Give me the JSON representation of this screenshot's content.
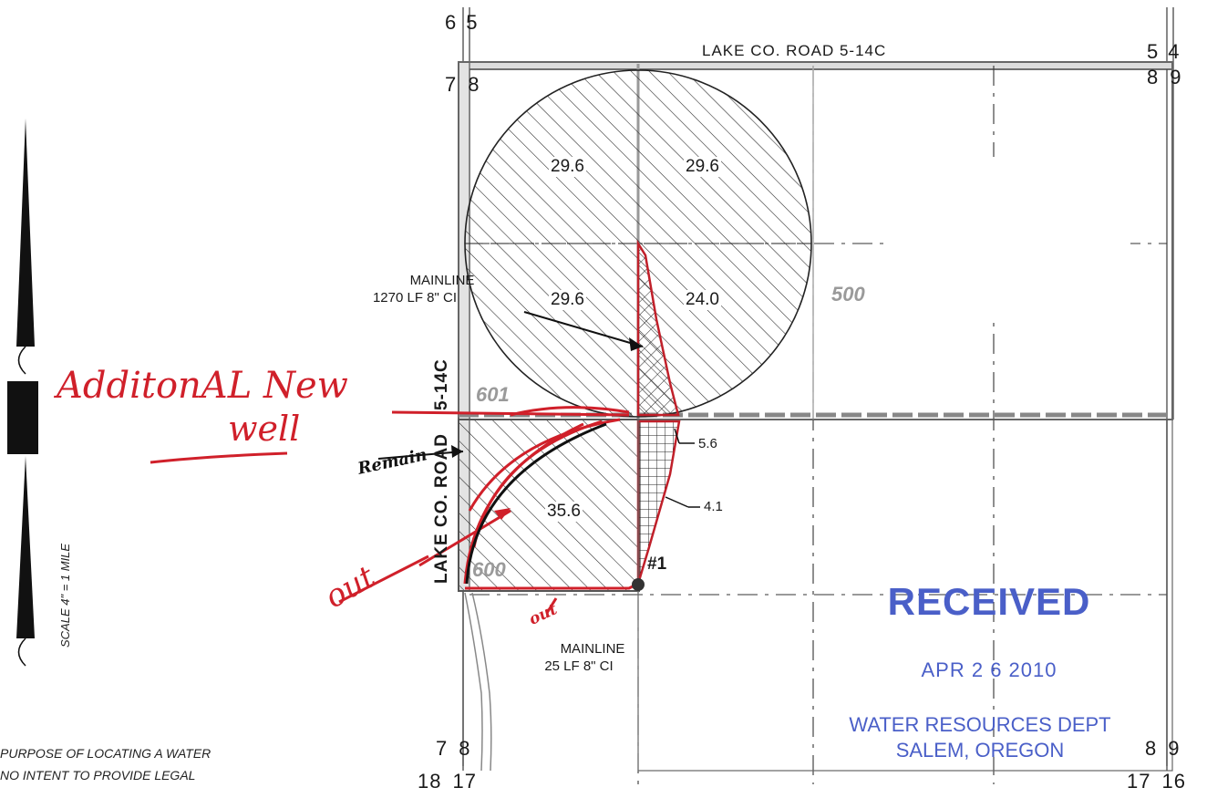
{
  "road_names": {
    "top": "LAKE CO. ROAD 5-14C",
    "side_upper": "5-14C",
    "side_lower": "LAKE CO. ROAD"
  },
  "section_corners": {
    "top_left": [
      "6",
      "5"
    ],
    "top_right": [
      "5",
      "4"
    ],
    "upper_left": [
      "7",
      "8"
    ],
    "upper_right": [
      "8",
      "9"
    ],
    "lower_left": [
      "7",
      "8"
    ],
    "lower_right": [
      "8",
      "9"
    ],
    "bottom_left": [
      "18",
      "17"
    ],
    "bottom_right": [
      "17",
      "16"
    ]
  },
  "acreage_labels": [
    "29.6",
    "29.6",
    "29.6",
    "24.0",
    "35.6"
  ],
  "callouts": {
    "mainline_upper": [
      "MAINLINE",
      "1270 LF 8\" CI"
    ],
    "mainline_lower": [
      "MAINLINE",
      "25 LF 8\" CI"
    ],
    "area_a": "5.6",
    "area_b": "4.1",
    "well": "#1"
  },
  "parcel_numbers": [
    "500",
    "601",
    "600"
  ],
  "scale_note": "SCALE 4\" = 1 MILE",
  "disclaimer_lines": [
    "PURPOSE OF LOCATING A WATER",
    "NO INTENT TO PROVIDE LEGAL"
  ],
  "handwritten": {
    "line1": "AdditonAL New",
    "line2": "well",
    "remain": "Remain",
    "out_left": "out",
    "out_bottom": "out"
  },
  "stamp": {
    "title": "RECEIVED",
    "date": "APR 2 6 2010",
    "dept": "WATER RESOURCES DEPT",
    "city": "SALEM, OREGON"
  },
  "colors": {
    "ink": "#1a1a1a",
    "hand_red": "#d0202a",
    "stamp_blue": "#4a5fc8",
    "parcel_gray": "#9a9a9a"
  }
}
